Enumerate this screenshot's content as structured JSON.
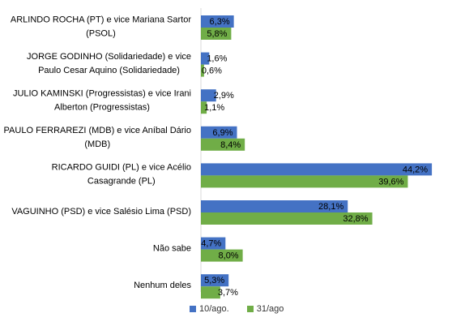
{
  "chart_data": {
    "type": "bar",
    "orientation": "horizontal",
    "categories": [
      [
        "ARLINDO ROCHA (PT) e vice Mariana Sartor",
        "(PSOL)"
      ],
      [
        "JORGE GODINHO (Solidariedade) e vice",
        "Paulo Cesar Aquino (Solidariedade)"
      ],
      [
        "JULIO KAMINSKI (Progressistas) e vice Irani",
        "Alberton (Progressistas)"
      ],
      [
        "PAULO FERRAREZI (MDB) e vice Aníbal Dário",
        "(MDB)"
      ],
      [
        "RICARDO GUIDI (PL) e vice Acélio",
        "Casagrande (PL)"
      ],
      [
        "VAGUINHO (PSD) e vice Salésio Lima (PSD)"
      ],
      [
        "Não sabe"
      ],
      [
        "Nenhum deles"
      ]
    ],
    "series": [
      {
        "name": "10/ago.",
        "color": "#4472C4",
        "values": [
          6.3,
          1.6,
          2.9,
          6.9,
          44.2,
          28.1,
          4.7,
          5.3
        ],
        "labels": [
          "6,3%",
          "1,6%",
          "2,9%",
          "6,9%",
          "44,2%",
          "28,1%",
          "4,7%",
          "5,3%"
        ]
      },
      {
        "name": "31/ago",
        "color": "#70AD47",
        "values": [
          5.8,
          0.6,
          1.1,
          8.4,
          39.6,
          32.8,
          8.0,
          3.7
        ],
        "labels": [
          "5,8%",
          "0,6%",
          "1,1%",
          "8,4%",
          "39,6%",
          "32,8%",
          "8,0%",
          "3,7%"
        ]
      }
    ],
    "legend_position": "bottom",
    "grid": false
  }
}
